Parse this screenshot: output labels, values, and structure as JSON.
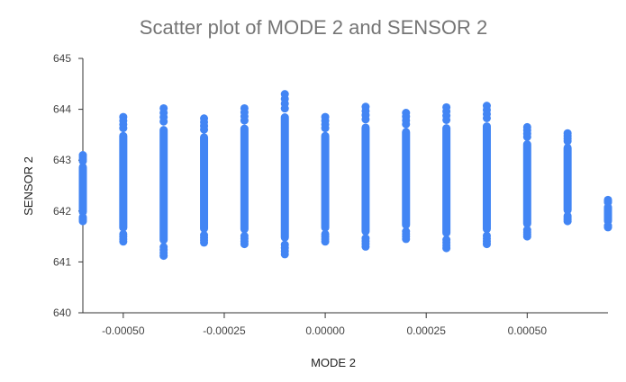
{
  "chart_data": {
    "type": "scatter",
    "title": "Scatter plot of MODE 2 and SENSOR 2",
    "xlabel": "MODE 2",
    "ylabel": "SENSOR 2",
    "xlim": [
      -0.0006,
      0.0007
    ],
    "ylim": [
      640,
      645
    ],
    "xticks": [
      -0.0005,
      -0.00025,
      0,
      0.00025,
      0.0005
    ],
    "xtick_labels": [
      "-0.00050",
      "-0.00025",
      "0.00000",
      "0.00025",
      "0.00050"
    ],
    "yticks": [
      640,
      641,
      642,
      643,
      644,
      645
    ],
    "ytick_labels": [
      "640",
      "641",
      "642",
      "643",
      "644",
      "645"
    ],
    "grid": false,
    "legend": "none",
    "point_color": "#4285f4",
    "series": [
      {
        "columns": [
          {
            "x": -0.0006,
            "ymin": 641.8,
            "ymax": 643.1
          },
          {
            "x": -0.0005,
            "ymin": 641.4,
            "ymax": 643.85
          },
          {
            "x": -0.0004,
            "ymin": 641.12,
            "ymax": 644.02
          },
          {
            "x": -0.0003,
            "ymin": 641.38,
            "ymax": 643.82
          },
          {
            "x": -0.0002,
            "ymin": 641.35,
            "ymax": 644.02
          },
          {
            "x": -0.0001,
            "ymin": 641.15,
            "ymax": 644.3
          },
          {
            "x": 0.0,
            "ymin": 641.4,
            "ymax": 643.85
          },
          {
            "x": 0.0001,
            "ymin": 641.3,
            "ymax": 644.05
          },
          {
            "x": 0.0002,
            "ymin": 641.45,
            "ymax": 643.93
          },
          {
            "x": 0.0003,
            "ymin": 641.27,
            "ymax": 644.04
          },
          {
            "x": 0.0004,
            "ymin": 641.35,
            "ymax": 644.07
          },
          {
            "x": 0.0005,
            "ymin": 641.5,
            "ymax": 643.65
          },
          {
            "x": 0.0006,
            "ymin": 641.8,
            "ymax": 643.53
          },
          {
            "x": 0.0007,
            "ymin": 641.68,
            "ymax": 642.22
          }
        ]
      }
    ]
  }
}
